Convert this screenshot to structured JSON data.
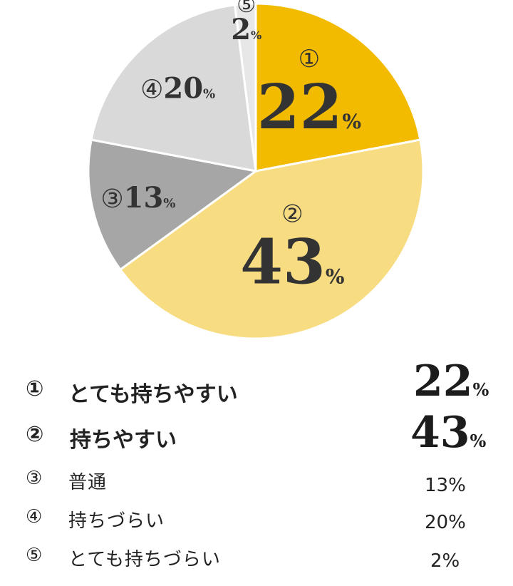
{
  "chart_data": {
    "type": "pie",
    "start": "top, clockwise",
    "slices": [
      {
        "marker": "①",
        "label": "とても持ちやすい",
        "value": 22,
        "color": "#F2BB00"
      },
      {
        "marker": "②",
        "label": "持ちやすい",
        "value": 43,
        "color": "#F7DC82"
      },
      {
        "marker": "③",
        "label": "普通",
        "value": 13,
        "color": "#A6A6A6"
      },
      {
        "marker": "④",
        "label": "持ちづらい",
        "value": 20,
        "color": "#D9D9D9"
      },
      {
        "marker": "⑤",
        "label": "とても持ちづらい",
        "value": 2,
        "color": "#E7E7E7"
      }
    ],
    "unit": "%"
  },
  "legend": [
    {
      "marker": "①",
      "label": "とても持ちやすい",
      "value": "22",
      "unit": "%",
      "emphasis": true
    },
    {
      "marker": "②",
      "label": "持ちやすい",
      "value": "43",
      "unit": "%",
      "emphasis": true
    },
    {
      "marker": "③",
      "label": "普通",
      "value": "13%",
      "emphasis": false
    },
    {
      "marker": "④",
      "label": "持ちづらい",
      "value": "20%",
      "emphasis": false
    },
    {
      "marker": "⑤",
      "label": "とても持ちづらい",
      "value": "2%",
      "emphasis": false
    }
  ]
}
